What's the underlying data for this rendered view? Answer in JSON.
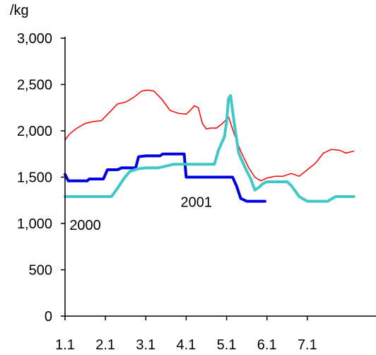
{
  "chart_data": {
    "type": "line",
    "y_unit": "/kg",
    "ylim": [
      0,
      3000
    ],
    "xlim": [
      1,
      8.7
    ],
    "y_ticks": [
      {
        "value": 0,
        "label": "0"
      },
      {
        "value": 500,
        "label": "500"
      },
      {
        "value": 1000,
        "label": "1,000"
      },
      {
        "value": 1500,
        "label": "1,500"
      },
      {
        "value": 2000,
        "label": "2,000"
      },
      {
        "value": 2500,
        "label": "2,500"
      },
      {
        "value": 3000,
        "label": "3,000"
      }
    ],
    "x_ticks": [
      {
        "value": 1,
        "label": "1.1"
      },
      {
        "value": 2,
        "label": "2.1"
      },
      {
        "value": 3,
        "label": "3.1"
      },
      {
        "value": 4,
        "label": "4.1"
      },
      {
        "value": 5,
        "label": "5.1"
      },
      {
        "value": 6,
        "label": "6.1"
      },
      {
        "value": 7,
        "label": "7.1"
      }
    ],
    "grid": false,
    "legend": "none",
    "annotations": [
      {
        "text": "2000",
        "x": 1.5,
        "y": 930
      },
      {
        "text": "2001",
        "x": 4.25,
        "y": 1180
      }
    ],
    "series": [
      {
        "color": "#ff0000",
        "width": 1.5,
        "points": [
          [
            1.0,
            1900
          ],
          [
            1.1,
            1960
          ],
          [
            1.3,
            2030
          ],
          [
            1.5,
            2080
          ],
          [
            1.7,
            2100
          ],
          [
            1.9,
            2110
          ],
          [
            2.1,
            2200
          ],
          [
            2.3,
            2290
          ],
          [
            2.5,
            2310
          ],
          [
            2.7,
            2360
          ],
          [
            2.9,
            2430
          ],
          [
            3.05,
            2440
          ],
          [
            3.2,
            2430
          ],
          [
            3.4,
            2340
          ],
          [
            3.6,
            2220
          ],
          [
            3.8,
            2190
          ],
          [
            4.0,
            2180
          ],
          [
            4.1,
            2220
          ],
          [
            4.2,
            2270
          ],
          [
            4.3,
            2250
          ],
          [
            4.4,
            2080
          ],
          [
            4.5,
            2020
          ],
          [
            4.6,
            2030
          ],
          [
            4.75,
            2030
          ],
          [
            4.9,
            2080
          ],
          [
            5.05,
            2150
          ],
          [
            5.2,
            1950
          ],
          [
            5.35,
            1780
          ],
          [
            5.55,
            1600
          ],
          [
            5.7,
            1500
          ],
          [
            5.85,
            1460
          ],
          [
            6.0,
            1490
          ],
          [
            6.2,
            1510
          ],
          [
            6.4,
            1510
          ],
          [
            6.6,
            1540
          ],
          [
            6.8,
            1510
          ],
          [
            7.0,
            1580
          ],
          [
            7.2,
            1650
          ],
          [
            7.4,
            1760
          ],
          [
            7.6,
            1800
          ],
          [
            7.8,
            1790
          ],
          [
            7.95,
            1760
          ],
          [
            8.05,
            1770
          ],
          [
            8.15,
            1780
          ]
        ]
      },
      {
        "color": "#0000e0",
        "width": 4,
        "points": [
          [
            1.0,
            1530
          ],
          [
            1.08,
            1460
          ],
          [
            1.55,
            1460
          ],
          [
            1.6,
            1480
          ],
          [
            1.95,
            1480
          ],
          [
            2.05,
            1580
          ],
          [
            2.3,
            1580
          ],
          [
            2.4,
            1600
          ],
          [
            2.75,
            1600
          ],
          [
            2.82,
            1720
          ],
          [
            3.0,
            1730
          ],
          [
            3.35,
            1730
          ],
          [
            3.42,
            1750
          ],
          [
            3.95,
            1750
          ],
          [
            4.0,
            1500
          ],
          [
            4.2,
            1500
          ],
          [
            5.15,
            1500
          ],
          [
            5.25,
            1400
          ],
          [
            5.35,
            1270
          ],
          [
            5.5,
            1240
          ],
          [
            5.95,
            1240
          ]
        ]
      },
      {
        "color": "#40c8c8",
        "width": 4,
        "points": [
          [
            1.0,
            1290
          ],
          [
            1.05,
            1290
          ],
          [
            2.15,
            1290
          ],
          [
            2.3,
            1380
          ],
          [
            2.45,
            1480
          ],
          [
            2.6,
            1560
          ],
          [
            2.8,
            1590
          ],
          [
            3.0,
            1600
          ],
          [
            3.3,
            1600
          ],
          [
            3.5,
            1620
          ],
          [
            3.7,
            1640
          ],
          [
            4.0,
            1640
          ],
          [
            4.7,
            1640
          ],
          [
            4.8,
            1790
          ],
          [
            4.95,
            1940
          ],
          [
            5.0,
            2100
          ],
          [
            5.05,
            2350
          ],
          [
            5.1,
            2380
          ],
          [
            5.2,
            2050
          ],
          [
            5.3,
            1760
          ],
          [
            5.45,
            1610
          ],
          [
            5.6,
            1480
          ],
          [
            5.7,
            1360
          ],
          [
            5.8,
            1390
          ],
          [
            5.9,
            1430
          ],
          [
            6.0,
            1450
          ],
          [
            6.5,
            1450
          ],
          [
            6.6,
            1410
          ],
          [
            6.8,
            1290
          ],
          [
            7.0,
            1240
          ],
          [
            7.5,
            1240
          ],
          [
            7.7,
            1290
          ],
          [
            8.15,
            1290
          ]
        ]
      }
    ]
  }
}
